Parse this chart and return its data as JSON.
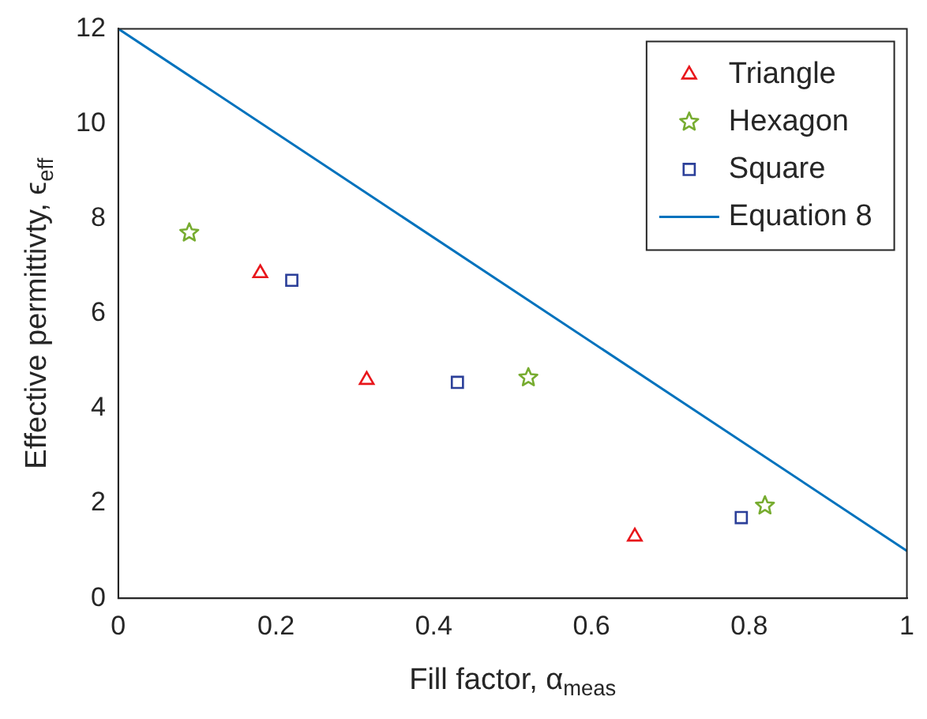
{
  "chart_data": {
    "type": "scatter",
    "xlabel": "Fill factor, α$_{meas}$",
    "ylabel": "Effective permittivty, ϵ$_{eff}$",
    "xlim": [
      0,
      1
    ],
    "xticks": [
      0,
      0.2,
      0.4,
      0.6,
      0.8,
      1
    ],
    "ylim": [
      0,
      12
    ],
    "yticks": [
      0,
      2,
      4,
      6,
      8,
      10,
      12
    ],
    "grid": false,
    "legend": "top right",
    "series": [
      {
        "name": "Triangle",
        "color": "#e8161b",
        "marker": "triangle",
        "x": [
          0.18,
          0.315,
          0.655
        ],
        "values": [
          6.85,
          4.6,
          1.3
        ]
      },
      {
        "name": "Hexagon",
        "color": "#77ac30",
        "marker": "star",
        "x": [
          0.09,
          0.52,
          0.82
        ],
        "values": [
          7.7,
          4.65,
          1.95
        ]
      },
      {
        "name": "Square",
        "color": "#2b3f99",
        "marker": "square",
        "x": [
          0.22,
          0.43,
          0.79
        ],
        "values": [
          6.7,
          4.55,
          1.7
        ]
      },
      {
        "name": "Equation 8",
        "type": "line",
        "color": "#0072bd",
        "marker": "none",
        "x": [
          0,
          1
        ],
        "values": [
          12,
          1
        ]
      }
    ]
  }
}
